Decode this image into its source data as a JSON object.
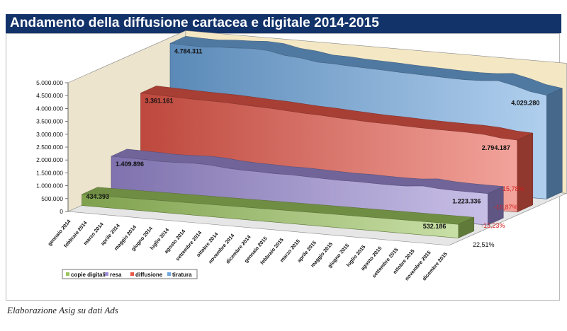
{
  "colors": {
    "title_bar": "#12326a",
    "copie_digitali": "#9bc45e",
    "resa": "#9b8bd4",
    "diffusione": "#e8584a",
    "tiratura": "#6fa8e0",
    "pct_label": "#d42020",
    "back_wall": "#f4e8c4"
  },
  "chart_data": {
    "type": "area",
    "subtype": "3d-area",
    "title": "Andamento della diffusione cartacea e digitale 2014-2015",
    "caption": "Elaborazione Asig su dati Ads",
    "categories": [
      "gennaio 2014",
      "febbraio 2014",
      "marzo 2014",
      "aprile 2014",
      "maggio 2014",
      "giugno 2014",
      "luglio 2014",
      "agosto 2014",
      "settembre 2014",
      "ottobre 2014",
      "novembre 2014",
      "dicembre 2014",
      "gennaio 2015",
      "febbraio 2015",
      "marzo 2015",
      "aprile 2015",
      "maggio 2015",
      "giugno 2015",
      "luglio 2015",
      "agosto 2015",
      "settembre 2015",
      "ottobre 2015",
      "novembre 2015",
      "dicembre 2015"
    ],
    "ylim": [
      0,
      5000000
    ],
    "yticks": [
      "0",
      "500.000",
      "1.000.000",
      "1.500.000",
      "2.000.000",
      "2.500.000",
      "3.000.000",
      "3.500.000",
      "4.000.000",
      "4.500.000",
      "5.000.000"
    ],
    "series": [
      {
        "name": "copie digitali",
        "values": [
          434393,
          440000,
          445000,
          450000,
          455000,
          460000,
          465000,
          470000,
          475000,
          480000,
          485000,
          490000,
          495000,
          500000,
          505000,
          508000,
          511000,
          514000,
          517000,
          520000,
          523000,
          526000,
          529000,
          532186
        ],
        "start_label": "434.393",
        "end_label": "532.186",
        "change": "22,51%"
      },
      {
        "name": "resa",
        "values": [
          1409896,
          1400000,
          1390000,
          1370000,
          1385000,
          1415000,
          1400000,
          1340000,
          1310000,
          1300000,
          1280000,
          1290000,
          1270000,
          1255000,
          1240000,
          1250000,
          1235000,
          1230000,
          1240000,
          1300000,
          1250000,
          1230000,
          1225000,
          1223336
        ],
        "start_label": "1.409.896",
        "end_label": "1.223.336",
        "change": "-13,23%"
      },
      {
        "name": "diffusione",
        "values": [
          3361161,
          3340000,
          3320000,
          3300000,
          3290000,
          3280000,
          3250000,
          3220000,
          3200000,
          3160000,
          3120000,
          3100000,
          3060000,
          3030000,
          3000000,
          2990000,
          2970000,
          2950000,
          2940000,
          2935000,
          2930000,
          2900000,
          2820000,
          2794187
        ],
        "start_label": "3.361.161",
        "end_label": "2.794.187",
        "change": "-16,87%"
      },
      {
        "name": "tiratura",
        "values": [
          4784311,
          4760000,
          4750000,
          4800000,
          4820000,
          4860000,
          4830000,
          4700000,
          4650000,
          4550000,
          4540000,
          4500000,
          4480000,
          4460000,
          4430000,
          4410000,
          4390000,
          4370000,
          4360000,
          4380000,
          4440000,
          4300000,
          4120000,
          4029280
        ],
        "start_label": "4.784.311",
        "end_label": "4.029.280",
        "change": "-15,78%"
      }
    ],
    "legend_position": "bottom-left",
    "grid": false
  }
}
